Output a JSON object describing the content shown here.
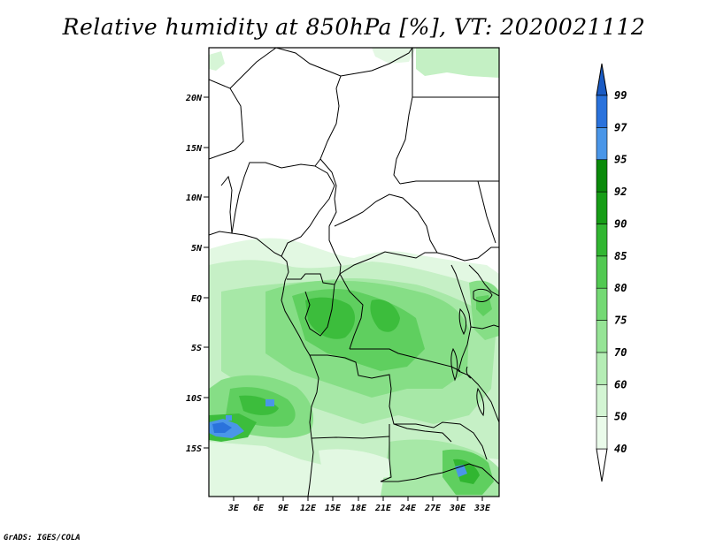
{
  "title": "Relative humidity at 850hPa [%], VT: 2020021112",
  "credit": "GrADS: IGES/COLA",
  "lat_ticks": [
    "20N",
    "15N",
    "10N",
    "5N",
    "EQ",
    "5S",
    "10S",
    "15S"
  ],
  "lon_ticks": [
    "3E",
    "6E",
    "9E",
    "12E",
    "15E",
    "18E",
    "21E",
    "24E",
    "27E",
    "30E",
    "33E"
  ],
  "colorbar": {
    "levels": [
      "40",
      "50",
      "60",
      "70",
      "75",
      "80",
      "85",
      "90",
      "92",
      "95",
      "97",
      "99"
    ],
    "colors": [
      "#ffffff",
      "#eafbea",
      "#d3f5d3",
      "#b5edb5",
      "#96e496",
      "#74d974",
      "#52c952",
      "#31b631",
      "#169d16",
      "#0a8a0a",
      "#4a96e8",
      "#2a72dc",
      "#1a5bc4"
    ]
  },
  "colors": {
    "coast": "#000000",
    "frame": "#000000"
  }
}
